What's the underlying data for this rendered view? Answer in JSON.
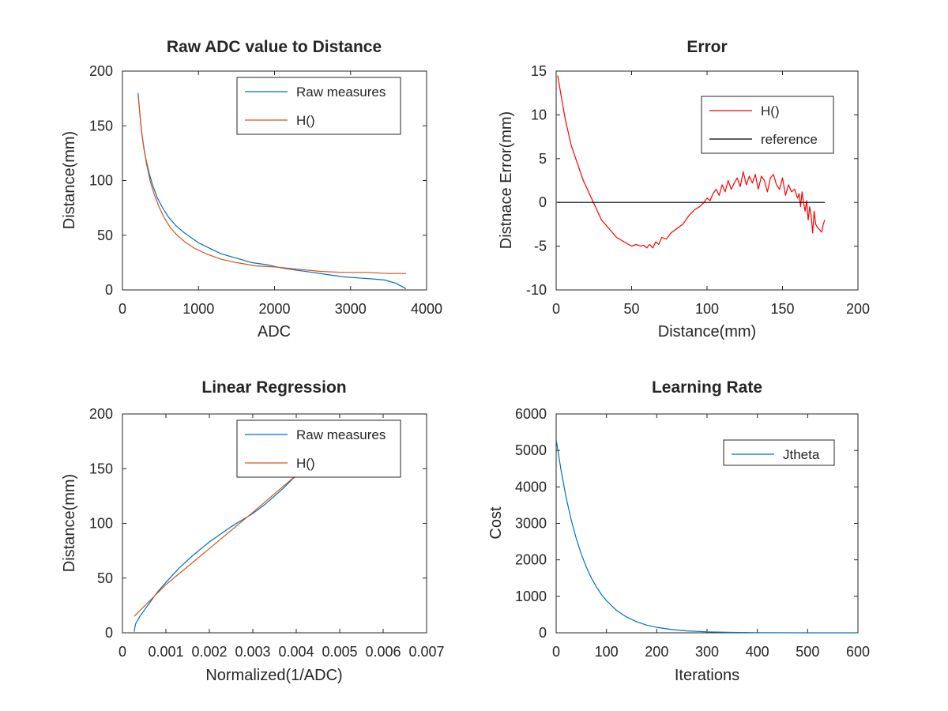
{
  "chart_data": [
    {
      "type": "line",
      "title": "Raw ADC value to Distance",
      "xlabel": "ADC",
      "ylabel": "Distance(mm)",
      "xlim": [
        0,
        4000
      ],
      "ylim": [
        0,
        200
      ],
      "xticks": [
        0,
        1000,
        2000,
        3000,
        4000
      ],
      "xtick_labels": [
        "0",
        "1000",
        "2000",
        "3000",
        "4000"
      ],
      "yticks": [
        0,
        50,
        100,
        150,
        200
      ],
      "ytick_labels": [
        "0",
        "50",
        "100",
        "150",
        "200"
      ],
      "legend_position": "top-right",
      "series": [
        {
          "name": "Raw measures",
          "color": "#0072BD",
          "x": [
            205,
            230,
            260,
            300,
            350,
            400,
            460,
            520,
            600,
            700,
            800,
            900,
            1000,
            1150,
            1300,
            1500,
            1700,
            1900,
            2100,
            2300,
            2500,
            2700,
            2900,
            3100,
            3300,
            3450,
            3600,
            3680,
            3730
          ],
          "y": [
            180,
            160,
            140,
            122,
            107,
            95,
            84,
            76,
            67,
            59,
            53,
            48,
            43,
            38,
            33,
            29,
            25,
            23,
            20,
            18,
            16,
            14,
            12,
            11,
            10,
            9,
            6,
            3,
            1
          ]
        },
        {
          "name": "H()",
          "color": "#D95319",
          "x": [
            210,
            240,
            280,
            320,
            370,
            420,
            480,
            550,
            630,
            720,
            820,
            950,
            1100,
            1300,
            1500,
            1750,
            2000,
            2300,
            2600,
            2900,
            3200,
            3500,
            3730
          ],
          "y": [
            176,
            152,
            130,
            114,
            98,
            87,
            76,
            66,
            57,
            50,
            44,
            38,
            33,
            28,
            25,
            22,
            21,
            19,
            17,
            16,
            16,
            15,
            15
          ]
        }
      ]
    },
    {
      "type": "line",
      "title": "Error",
      "xlabel": "Distance(mm)",
      "ylabel": "Distnace Error(mm)",
      "xlim": [
        0,
        200
      ],
      "ylim": [
        -10,
        15
      ],
      "xticks": [
        0,
        50,
        100,
        150,
        200
      ],
      "xtick_labels": [
        "0",
        "50",
        "100",
        "150",
        "200"
      ],
      "yticks": [
        -10,
        -5,
        0,
        5,
        10,
        15
      ],
      "ytick_labels": [
        "-10",
        "-5",
        "0",
        "5",
        "10",
        "15"
      ],
      "legend_position": "top-right",
      "series": [
        {
          "name": "H()",
          "color": "#FF0000",
          "x": [
            1,
            3,
            6,
            10,
            14,
            18,
            22,
            26,
            30,
            35,
            40,
            45,
            50,
            53,
            56,
            58,
            60,
            62,
            64,
            66,
            68,
            70,
            73,
            76,
            80,
            84,
            88,
            92,
            95,
            98,
            100,
            102,
            104,
            106,
            108,
            110,
            112,
            114,
            116,
            118,
            120,
            122,
            124,
            126,
            128,
            130,
            132,
            134,
            136,
            138,
            140,
            142,
            144,
            146,
            148,
            150,
            152,
            154,
            156,
            158,
            160,
            161,
            162,
            163,
            164,
            165,
            166,
            167,
            168,
            169,
            170,
            171,
            172,
            173,
            174,
            175,
            176,
            177,
            178
          ],
          "y": [
            14.5,
            12.5,
            9.5,
            6.5,
            4.5,
            2.5,
            1,
            -0.5,
            -2,
            -3,
            -4,
            -4.5,
            -5,
            -4.8,
            -5,
            -4.9,
            -5.2,
            -4.8,
            -5.2,
            -4.5,
            -4.8,
            -4,
            -4.2,
            -3.5,
            -3,
            -2.5,
            -1.5,
            -0.8,
            -0.5,
            0,
            0.5,
            0.2,
            1,
            1.5,
            0.8,
            2,
            1.2,
            2.5,
            1.5,
            2.2,
            2.8,
            1.8,
            3.5,
            2,
            3,
            2.2,
            3.2,
            1.5,
            3,
            2.5,
            1.2,
            2.8,
            3.2,
            2,
            1.5,
            2.8,
            0.8,
            2,
            1.2,
            1.5,
            0.5,
            1,
            -0.5,
            1.2,
            0,
            -1,
            0.2,
            -2,
            -0.5,
            -1.5,
            -3.5,
            -1,
            -2.5,
            -2.8,
            -3,
            -3.2,
            -3.4,
            -2.5,
            -2
          ]
        },
        {
          "name": "reference",
          "color": "#000000",
          "x": [
            1,
            178
          ],
          "y": [
            0,
            0
          ]
        }
      ]
    },
    {
      "type": "line",
      "title": "Linear Regression",
      "xlabel": "Normalized(1/ADC)",
      "ylabel": "Distance(mm)",
      "xlim": [
        0,
        0.007
      ],
      "ylim": [
        0,
        200
      ],
      "xticks": [
        0,
        0.001,
        0.002,
        0.003,
        0.004,
        0.005,
        0.006,
        0.007
      ],
      "xtick_labels": [
        "0",
        "0.001",
        "0.002",
        "0.003",
        "0.004",
        "0.005",
        "0.006",
        "0.007"
      ],
      "yticks": [
        0,
        50,
        100,
        150,
        200
      ],
      "ytick_labels": [
        "0",
        "50",
        "100",
        "150",
        "200"
      ],
      "legend_position": "top-right",
      "series": [
        {
          "name": "Raw measures",
          "color": "#0072BD",
          "x": [
            0.00027,
            0.0003,
            0.0004,
            0.0006,
            0.0008,
            0.001,
            0.0013,
            0.0016,
            0.002,
            0.0025,
            0.003,
            0.0033,
            0.0035,
            0.0037,
            0.0039,
            0.004
          ],
          "y": [
            1,
            8,
            15,
            26,
            37,
            46,
            59,
            70,
            83,
            97,
            109,
            118,
            125,
            132,
            140,
            144
          ]
        },
        {
          "name": "H()",
          "color": "#D95319",
          "x": [
            0.00027,
            0.001,
            0.002,
            0.003,
            0.004
          ],
          "y": [
            15,
            44,
            77,
            110,
            144
          ]
        }
      ]
    },
    {
      "type": "line",
      "title": "Learning Rate",
      "xlabel": "Iterations",
      "ylabel": "Cost",
      "xlim": [
        0,
        600
      ],
      "ylim": [
        0,
        6000
      ],
      "xticks": [
        0,
        100,
        200,
        300,
        400,
        500,
        600
      ],
      "xtick_labels": [
        "0",
        "100",
        "200",
        "300",
        "400",
        "500",
        "600"
      ],
      "yticks": [
        0,
        1000,
        2000,
        3000,
        4000,
        5000,
        6000
      ],
      "ytick_labels": [
        "0",
        "1000",
        "2000",
        "3000",
        "4000",
        "5000",
        "6000"
      ],
      "legend_position": "top-right",
      "series": [
        {
          "name": "Jtheta",
          "color": "#0072BD",
          "x": [
            0,
            10,
            20,
            30,
            40,
            50,
            60,
            70,
            80,
            90,
            100,
            120,
            140,
            160,
            180,
            200,
            230,
            260,
            300,
            350,
            400,
            500,
            600
          ],
          "y": [
            5300,
            4430,
            3700,
            3090,
            2580,
            2160,
            1800,
            1500,
            1260,
            1050,
            880,
            615,
            430,
            300,
            210,
            150,
            88,
            52,
            25,
            10,
            4,
            1,
            0
          ]
        }
      ]
    }
  ]
}
